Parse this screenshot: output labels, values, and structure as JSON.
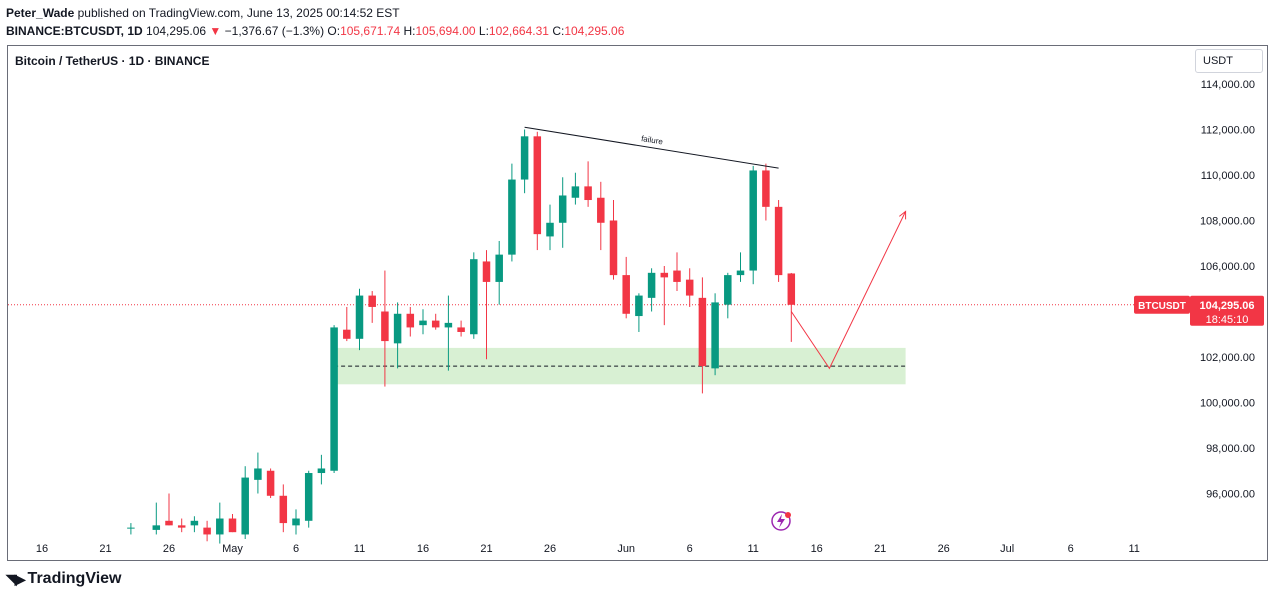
{
  "header": {
    "author": "Peter_Wade",
    "published": "published on TradingView.com, June 13, 2025 00:14:52 EST",
    "symbol": "BINANCE:BTCUSDT, 1D",
    "last": "104,295.06",
    "change_arrow": "▼",
    "change": "−1,376.67 (−1.3%)",
    "o_label": "O:",
    "o": "105,671.74",
    "h_label": "H:",
    "h": "105,694.00",
    "l_label": "L:",
    "l": "102,664.31",
    "c_label": "C:",
    "c": "104,295.06"
  },
  "chart_title": "Bitcoin / TetherUS · 1D · BINANCE",
  "unit_label": "USDT",
  "price_tag": {
    "symbol": "BTCUSDT",
    "price": "104,295.06",
    "countdown": "18:45:10"
  },
  "annotation": {
    "failure_label": "failure"
  },
  "footer": {
    "brand": "TradingView"
  },
  "colors": {
    "up": "#089981",
    "down": "#f23645",
    "zone": "#d8f0d3",
    "text": "#131722"
  },
  "chart_data": {
    "type": "candlestick",
    "y_ticks": [
      "114,000.00",
      "112,000.00",
      "110,000.00",
      "108,000.00",
      "106,000.00",
      "102,000.00",
      "100,000.00",
      "98,000.00",
      "96,000.00"
    ],
    "y_tick_values": [
      114000,
      112000,
      110000,
      108000,
      106000,
      102000,
      100000,
      98000,
      96000
    ],
    "x_ticks": [
      {
        "label": "16",
        "day": 0
      },
      {
        "label": "21",
        "day": 5
      },
      {
        "label": "26",
        "day": 10
      },
      {
        "label": "May",
        "day": 15
      },
      {
        "label": "6",
        "day": 20
      },
      {
        "label": "11",
        "day": 25
      },
      {
        "label": "16",
        "day": 30
      },
      {
        "label": "21",
        "day": 35
      },
      {
        "label": "26",
        "day": 40
      },
      {
        "label": "Jun",
        "day": 46
      },
      {
        "label": "6",
        "day": 51
      },
      {
        "label": "11",
        "day": 56
      },
      {
        "label": "16",
        "day": 61
      },
      {
        "label": "21",
        "day": 66
      },
      {
        "label": "26",
        "day": 71
      },
      {
        "label": "Jul",
        "day": 76
      },
      {
        "label": "6",
        "day": 81
      },
      {
        "label": "11",
        "day": 86
      }
    ],
    "candles": [
      {
        "d": 7,
        "o": 94500,
        "h": 94700,
        "l": 94200,
        "c": 94500
      },
      {
        "d": 9,
        "o": 94400,
        "h": 95600,
        "l": 94200,
        "c": 94600
      },
      {
        "d": 10,
        "o": 94800,
        "h": 96000,
        "l": 94600,
        "c": 94600
      },
      {
        "d": 11,
        "o": 94600,
        "h": 94900,
        "l": 94300,
        "c": 94500
      },
      {
        "d": 12,
        "o": 94600,
        "h": 95000,
        "l": 94300,
        "c": 94800
      },
      {
        "d": 13,
        "o": 94500,
        "h": 94800,
        "l": 93900,
        "c": 94200
      },
      {
        "d": 14,
        "o": 94200,
        "h": 95600,
        "l": 93800,
        "c": 94900
      },
      {
        "d": 15,
        "o": 94900,
        "h": 95100,
        "l": 94300,
        "c": 94300
      },
      {
        "d": 16,
        "o": 94200,
        "h": 97200,
        "l": 94000,
        "c": 96700
      },
      {
        "d": 17,
        "o": 96600,
        "h": 97800,
        "l": 96000,
        "c": 97100
      },
      {
        "d": 18,
        "o": 97000,
        "h": 97100,
        "l": 95800,
        "c": 95900
      },
      {
        "d": 19,
        "o": 95900,
        "h": 96400,
        "l": 94300,
        "c": 94700
      },
      {
        "d": 20,
        "o": 94600,
        "h": 95300,
        "l": 94200,
        "c": 94900
      },
      {
        "d": 21,
        "o": 94800,
        "h": 97000,
        "l": 94500,
        "c": 96900
      },
      {
        "d": 22,
        "o": 96900,
        "h": 97700,
        "l": 96400,
        "c": 97100
      },
      {
        "d": 23,
        "o": 97000,
        "h": 103400,
        "l": 96900,
        "c": 103300
      },
      {
        "d": 24,
        "o": 103200,
        "h": 104200,
        "l": 102700,
        "c": 102800
      },
      {
        "d": 25,
        "o": 102800,
        "h": 105000,
        "l": 102300,
        "c": 104700
      },
      {
        "d": 26,
        "o": 104700,
        "h": 104900,
        "l": 103500,
        "c": 104200
      },
      {
        "d": 27,
        "o": 104000,
        "h": 105800,
        "l": 100700,
        "c": 102700
      },
      {
        "d": 28,
        "o": 102600,
        "h": 104400,
        "l": 101500,
        "c": 103900
      },
      {
        "d": 29,
        "o": 103900,
        "h": 104200,
        "l": 102900,
        "c": 103300
      },
      {
        "d": 30,
        "o": 103400,
        "h": 104100,
        "l": 103000,
        "c": 103600
      },
      {
        "d": 31,
        "o": 103600,
        "h": 103900,
        "l": 103200,
        "c": 103300
      },
      {
        "d": 32,
        "o": 103300,
        "h": 104700,
        "l": 101400,
        "c": 103500
      },
      {
        "d": 33,
        "o": 103300,
        "h": 103600,
        "l": 102900,
        "c": 103100
      },
      {
        "d": 34,
        "o": 103000,
        "h": 106600,
        "l": 102800,
        "c": 106300
      },
      {
        "d": 35,
        "o": 106200,
        "h": 106700,
        "l": 101900,
        "c": 105300
      },
      {
        "d": 36,
        "o": 105300,
        "h": 107100,
        "l": 104300,
        "c": 106500
      },
      {
        "d": 37,
        "o": 106500,
        "h": 110500,
        "l": 106200,
        "c": 109800
      },
      {
        "d": 38,
        "o": 109800,
        "h": 112000,
        "l": 109200,
        "c": 111700
      },
      {
        "d": 39,
        "o": 111700,
        "h": 111900,
        "l": 106700,
        "c": 107400
      },
      {
        "d": 40,
        "o": 107300,
        "h": 108700,
        "l": 106700,
        "c": 107900
      },
      {
        "d": 41,
        "o": 107900,
        "h": 109900,
        "l": 106800,
        "c": 109100
      },
      {
        "d": 42,
        "o": 109000,
        "h": 110100,
        "l": 108700,
        "c": 109500
      },
      {
        "d": 43,
        "o": 109500,
        "h": 110600,
        "l": 108600,
        "c": 108900
      },
      {
        "d": 44,
        "o": 109000,
        "h": 109700,
        "l": 106700,
        "c": 107900
      },
      {
        "d": 45,
        "o": 108000,
        "h": 108900,
        "l": 105400,
        "c": 105600
      },
      {
        "d": 46,
        "o": 105600,
        "h": 106400,
        "l": 103700,
        "c": 103900
      },
      {
        "d": 47,
        "o": 103800,
        "h": 104800,
        "l": 103100,
        "c": 104700
      },
      {
        "d": 48,
        "o": 104600,
        "h": 105900,
        "l": 104000,
        "c": 105700
      },
      {
        "d": 49,
        "o": 105700,
        "h": 106000,
        "l": 103400,
        "c": 105500
      },
      {
        "d": 50,
        "o": 105800,
        "h": 106600,
        "l": 104900,
        "c": 105300
      },
      {
        "d": 51,
        "o": 105400,
        "h": 105900,
        "l": 104200,
        "c": 104700
      },
      {
        "d": 52,
        "o": 104600,
        "h": 105500,
        "l": 100400,
        "c": 101600
      },
      {
        "d": 53,
        "o": 101500,
        "h": 104800,
        "l": 101200,
        "c": 104400
      },
      {
        "d": 54,
        "o": 104300,
        "h": 105700,
        "l": 103700,
        "c": 105600
      },
      {
        "d": 55,
        "o": 105600,
        "h": 106600,
        "l": 105300,
        "c": 105800
      },
      {
        "d": 56,
        "o": 105800,
        "h": 110400,
        "l": 105200,
        "c": 110200
      },
      {
        "d": 57,
        "o": 110200,
        "h": 110500,
        "l": 108000,
        "c": 108600
      },
      {
        "d": 58,
        "o": 108600,
        "h": 108900,
        "l": 105300,
        "c": 105600
      },
      {
        "d": 59,
        "o": 105672,
        "h": 105694,
        "l": 102664,
        "c": 104295
      }
    ],
    "support_zone": {
      "from_day": 23,
      "to_day": 68,
      "low": 100800,
      "high": 102400,
      "mid_line": 101600
    },
    "resistance_line": {
      "from": {
        "d": 38,
        "p": 112100
      },
      "to": {
        "d": 58,
        "p": 110300
      }
    },
    "projection": [
      {
        "d": 59,
        "p": 104000
      },
      {
        "d": 62,
        "p": 101500
      },
      {
        "d": 68,
        "p": 108400
      }
    ],
    "current_price": 104295.06
  }
}
